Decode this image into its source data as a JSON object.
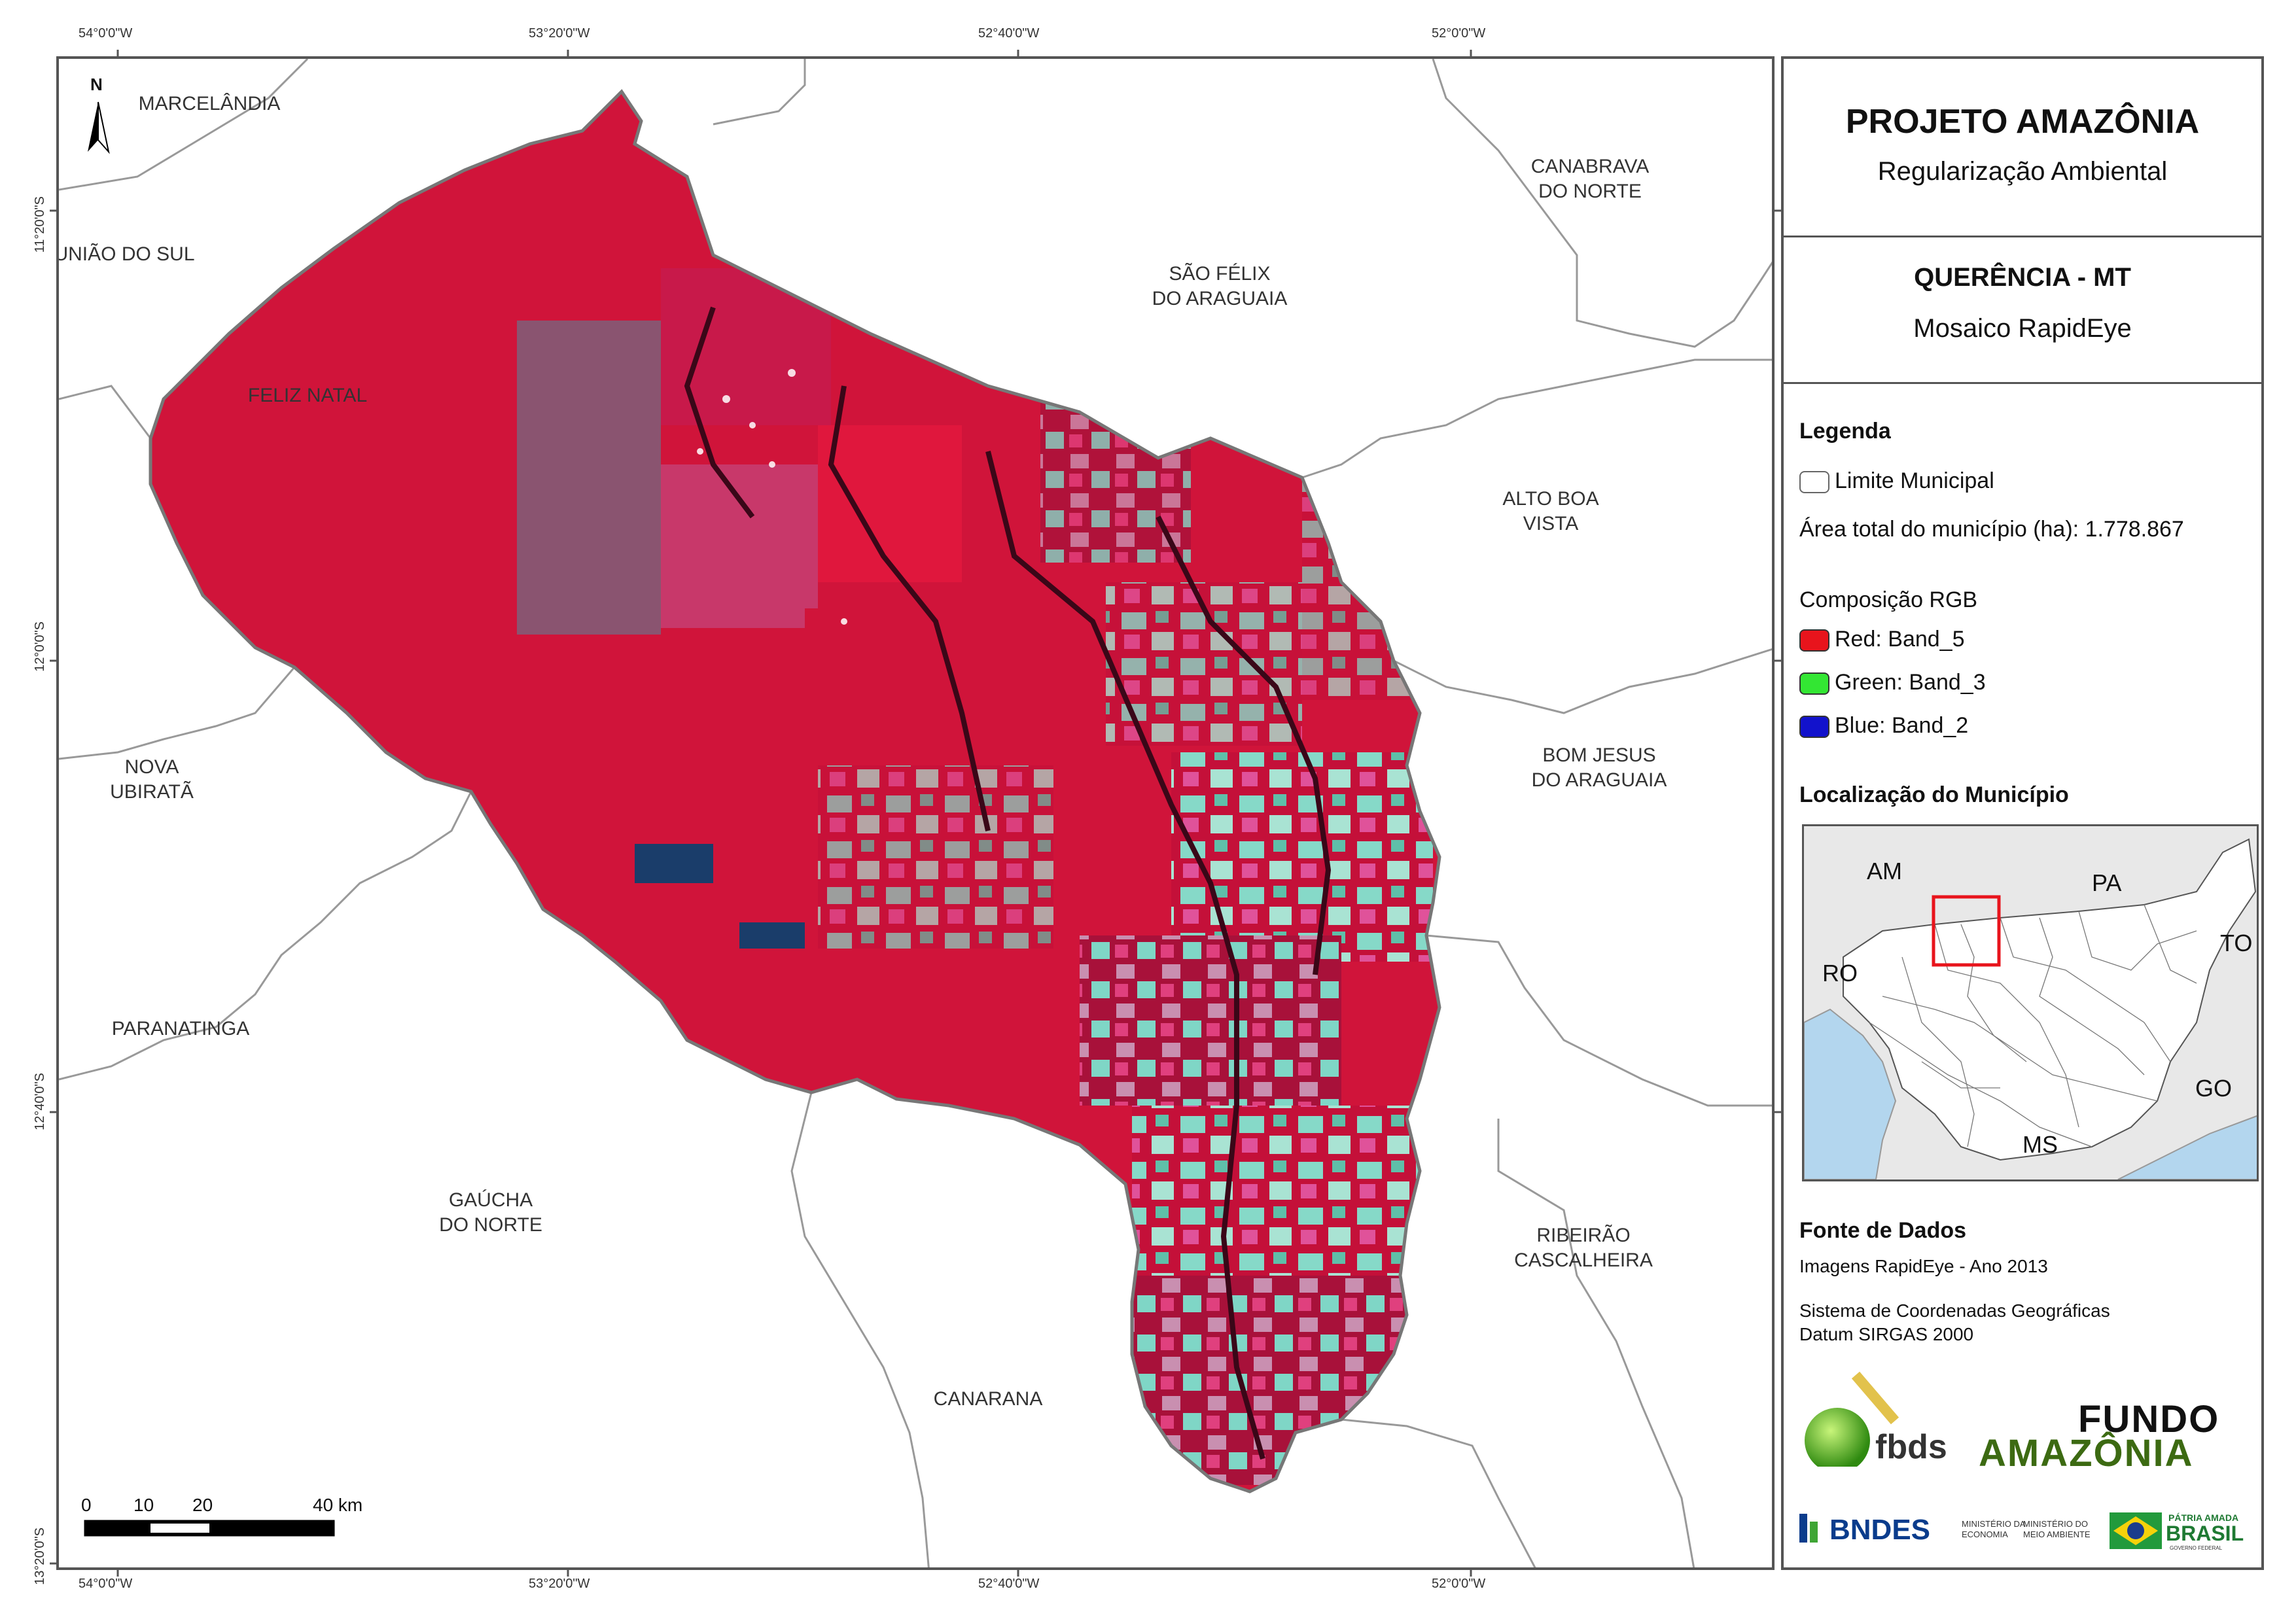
{
  "coords": {
    "top": [
      "54°0'0\"W",
      "53°20'0\"W",
      "52°40'0\"W",
      "52°0'0\"W"
    ],
    "bottom": [
      "54°0'0\"W",
      "53°20'0\"W",
      "52°40'0\"W",
      "52°0'0\"W"
    ],
    "left": [
      "11°20'0\"S",
      "12°0'0\"S",
      "12°40'0\"S",
      "13°20'0\"S"
    ]
  },
  "north_arrow": {
    "letter": "N"
  },
  "municipalities": {
    "marcelandia": "MARCELÂNDIA",
    "uniao_do_sul": "UNIÃO DO SUL",
    "feliz_natal": "FELIZ NATAL",
    "nova_ubirata_1": "NOVA",
    "nova_ubirata_2": "UBIRATÃ",
    "paranatinga": "PARANATINGA",
    "gaucha_1": "GAÚCHA",
    "gaucha_2": "DO NORTE",
    "canarana": "CANARANA",
    "sao_felix_1": "SÃO FÉLIX",
    "sao_felix_2": "DO ARAGUAIA",
    "canabrava_1": "CANABRAVA",
    "canabrava_2": "DO NORTE",
    "alto_boa_1": "ALTO BOA",
    "alto_boa_2": "VISTA",
    "bom_jesus_1": "BOM JESUS",
    "bom_jesus_2": "DO ARAGUAIA",
    "ribeirao_1": "RIBEIRÃO",
    "ribeirao_2": "CASCALHEIRA"
  },
  "scale_bar": {
    "labels": [
      "0",
      "10",
      "20",
      "40 km"
    ]
  },
  "panel": {
    "title": "PROJETO AMAZÔNIA",
    "subtitle": "Regularização Ambiental",
    "area_title": "QUERÊNCIA - MT",
    "area_subtitle": "Mosaico RapidEye",
    "legend_heading": "Legenda",
    "legend_limit": "Limite Municipal",
    "legend_area": "Área total do município (ha): 1.778.867",
    "rgb_heading": "Composição RGB",
    "rgb": [
      {
        "label": "Red:    Band_5",
        "color": "#e8141c"
      },
      {
        "label": "Green: Band_3",
        "color": "#33e633"
      },
      {
        "label": "Blue:   Band_2",
        "color": "#1212cc"
      }
    ],
    "location_heading": "Localização do Município",
    "inset_states": {
      "am": "AM",
      "pa": "PA",
      "to": "TO",
      "ro": "RO",
      "go": "GO",
      "ms": "MS"
    },
    "sources_heading": "Fonte de Dados",
    "source_1": "Imagens RapidEye - Ano 2013",
    "source_2": "Sistema de Coordenadas Geográficas",
    "source_3": "Datum SIRGAS 2000",
    "logos": {
      "fbds": "fbds",
      "fundo_1": "FUNDO",
      "fundo_2": "AMAZÔNIA",
      "bndes": "BNDES",
      "min_economia_1": "MINISTÉRIO DA",
      "min_economia_2": "ECONOMIA",
      "min_ambiente_1": "MINISTÉRIO DO",
      "min_ambiente_2": "MEIO AMBIENTE",
      "patria_1": "PÁTRIA AMADA",
      "patria_2": "BRASIL",
      "patria_3": "GOVERNO FEDERAL"
    }
  },
  "colors": {
    "veg_red": "#d0143a",
    "deforested_cyan": "#7fd6c6",
    "frame": "#555555",
    "boundary": "#999999",
    "inset_water": "#b3d6ee",
    "inset_highlight": "#e8141c"
  }
}
